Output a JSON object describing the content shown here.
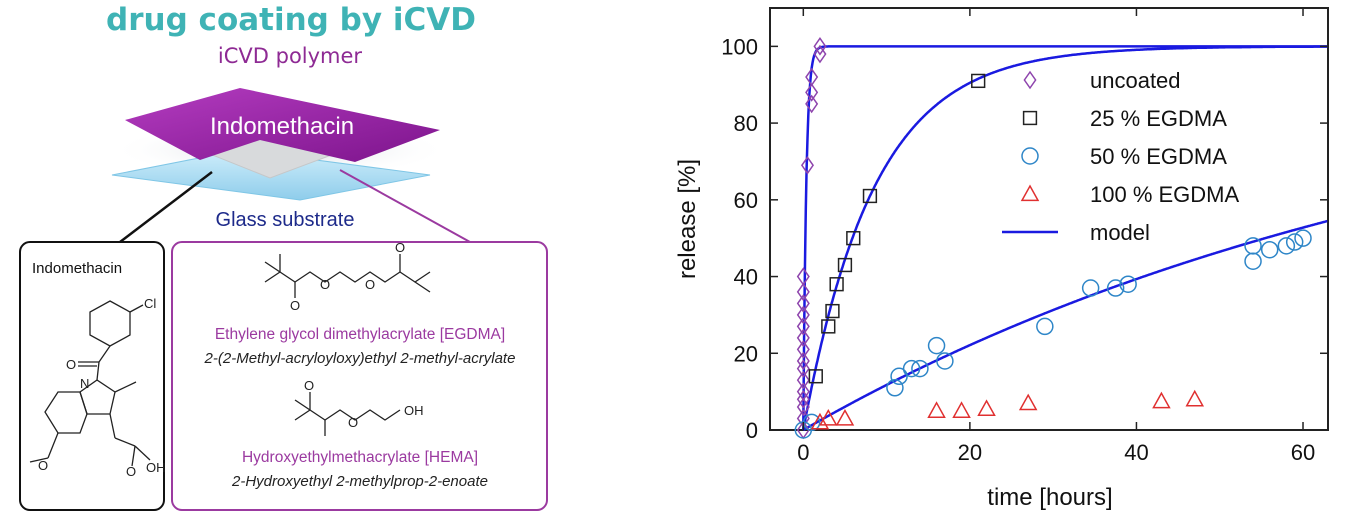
{
  "diagram": {
    "title": "drug coating by iCVD",
    "polymer_label": "iCVD polymer",
    "drug_label": "Indomethacin",
    "substrate_label": "Glass substrate",
    "left_box": {
      "title": "Indomethacin",
      "atoms": {
        "cl": "Cl",
        "o_carbonyl": "O",
        "n": "N",
        "o_methoxy": "O",
        "o_acid": "O",
        "oh": "OH"
      }
    },
    "right_box": {
      "egdma_name": "Ethylene glycol dimethylacrylate [EGDMA]",
      "egdma_iupac": "2-(2-Methyl-acryloyloxy)ethyl 2-methyl-acrylate",
      "hema_name": "Hydroxyethylmethacrylate [HEMA]",
      "hema_iupac": "2-Hydroxyethyl 2-methylprop-2-enoate",
      "atoms": {
        "o1": "O",
        "o2": "O",
        "o3": "O",
        "o4": "O",
        "h_o1": "O",
        "h_o2": "O",
        "h_oh": "OH"
      }
    },
    "colors": {
      "title": "#3fb3b5",
      "polymer": "#9b1fa8",
      "substrate_text": "#1d2a8a",
      "glass": "#a9dcf2"
    }
  },
  "chart_data": {
    "type": "scatter",
    "title": "",
    "xlabel": "time [hours]",
    "ylabel": "release [%]",
    "xlim": [
      -4,
      63
    ],
    "ylim": [
      0,
      110
    ],
    "xticks": [
      0,
      20,
      40,
      60
    ],
    "yticks": [
      0,
      20,
      40,
      60,
      80,
      100
    ],
    "legend_position": "top-right",
    "grid": false,
    "series": [
      {
        "name": "uncoated",
        "marker": "diamond",
        "color": "#8e44ad",
        "points": [
          [
            0,
            0
          ],
          [
            0,
            3
          ],
          [
            0,
            6
          ],
          [
            0,
            8
          ],
          [
            0,
            10
          ],
          [
            0,
            13
          ],
          [
            0,
            16
          ],
          [
            0,
            18
          ],
          [
            0,
            21
          ],
          [
            0,
            24
          ],
          [
            0,
            27
          ],
          [
            0,
            30
          ],
          [
            0,
            33
          ],
          [
            0,
            36
          ],
          [
            0,
            40
          ],
          [
            0.5,
            69
          ],
          [
            1,
            85
          ],
          [
            1,
            88
          ],
          [
            1,
            92
          ],
          [
            2,
            98
          ],
          [
            2,
            100
          ]
        ]
      },
      {
        "name": "25 % EGDMA",
        "marker": "square",
        "color": "#222222",
        "points": [
          [
            1.5,
            14
          ],
          [
            3,
            27
          ],
          [
            3.5,
            31
          ],
          [
            4,
            38
          ],
          [
            5,
            43
          ],
          [
            6,
            50
          ],
          [
            8,
            61
          ],
          [
            21,
            91
          ]
        ]
      },
      {
        "name": "50 % EGDMA",
        "marker": "circle",
        "color": "#2e86c8",
        "points": [
          [
            0,
            0
          ],
          [
            1,
            2
          ],
          [
            11,
            11
          ],
          [
            11.5,
            14
          ],
          [
            13,
            16
          ],
          [
            14,
            16
          ],
          [
            16,
            22
          ],
          [
            17,
            18
          ],
          [
            29,
            27
          ],
          [
            34.5,
            37
          ],
          [
            37.5,
            37
          ],
          [
            39,
            38
          ],
          [
            54,
            44
          ],
          [
            54,
            48
          ],
          [
            56,
            47
          ],
          [
            58,
            48
          ],
          [
            59,
            49
          ],
          [
            60,
            50
          ]
        ]
      },
      {
        "name": "100 % EGDMA",
        "marker": "triangle",
        "color": "#e03030",
        "points": [
          [
            2,
            2
          ],
          [
            3,
            3
          ],
          [
            5,
            3
          ],
          [
            16,
            5
          ],
          [
            19,
            5
          ],
          [
            22,
            5.5
          ],
          [
            27,
            7
          ],
          [
            43,
            7.5
          ],
          [
            47,
            8
          ]
        ]
      },
      {
        "name": "model",
        "marker": "line",
        "color": "#1a1ae0"
      }
    ]
  }
}
